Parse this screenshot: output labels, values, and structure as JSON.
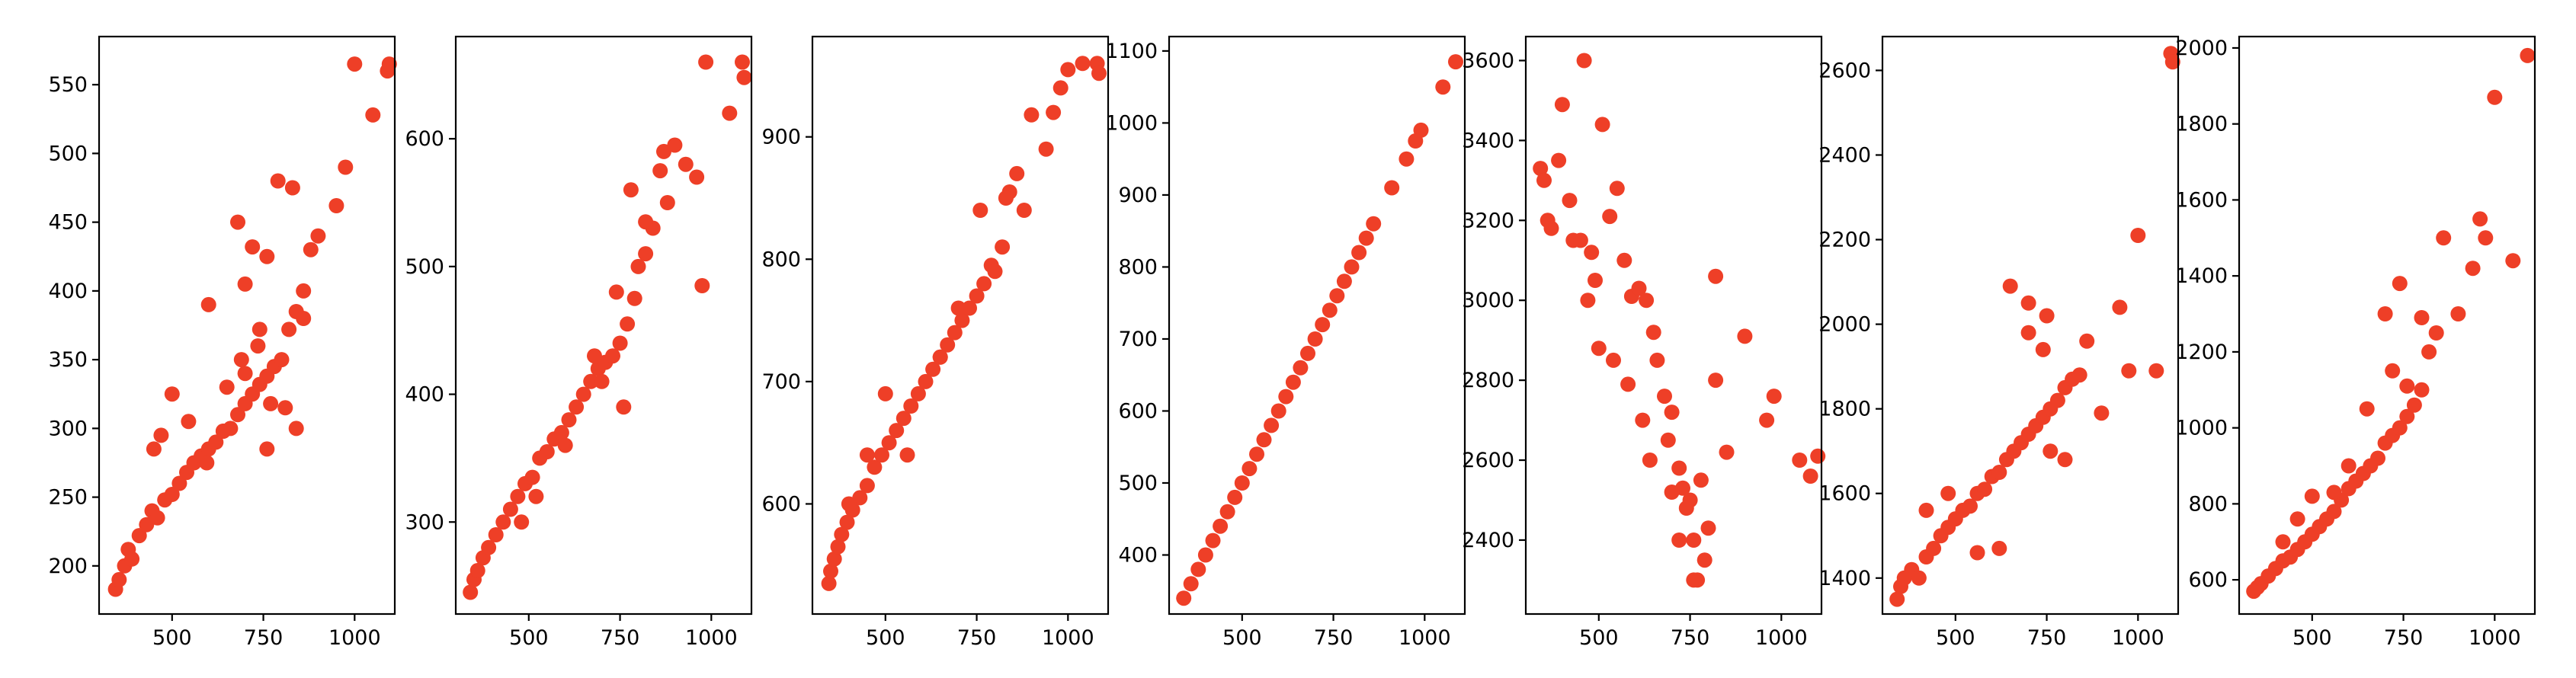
{
  "figure": {
    "point_color": "#ee3f27"
  },
  "chart_data": [
    {
      "type": "scatter",
      "title": "",
      "xlabel": "",
      "ylabel": "",
      "xlim": [
        300,
        1110
      ],
      "ylim": [
        165,
        585
      ],
      "grid": false,
      "legend": "none",
      "xticks": [
        {
          "v": 500,
          "label": "500"
        },
        {
          "v": 750,
          "label": "750"
        },
        {
          "v": 1000,
          "label": "1000"
        }
      ],
      "yticks": [
        {
          "v": 200,
          "label": "200"
        },
        {
          "v": 250,
          "label": "250"
        },
        {
          "v": 300,
          "label": "300"
        },
        {
          "v": 350,
          "label": "350"
        },
        {
          "v": 400,
          "label": "400"
        },
        {
          "v": 450,
          "label": "450"
        },
        {
          "v": 500,
          "label": "500"
        },
        {
          "v": 550,
          "label": "550"
        }
      ],
      "x": [
        345,
        355,
        370,
        380,
        390,
        410,
        430,
        445,
        460,
        480,
        500,
        520,
        540,
        560,
        580,
        600,
        620,
        640,
        660,
        680,
        700,
        720,
        740,
        760,
        780,
        800,
        820,
        840,
        860,
        880,
        900,
        950,
        975,
        1000,
        1050,
        1090,
        1095,
        680,
        720,
        760,
        790,
        830,
        700,
        740,
        600,
        650,
        690,
        735,
        770,
        810,
        840,
        860,
        450,
        470,
        500,
        545,
        595,
        640,
        700,
        760
      ],
      "y": [
        183,
        190,
        200,
        212,
        205,
        222,
        230,
        240,
        235,
        248,
        252,
        260,
        268,
        275,
        280,
        285,
        290,
        298,
        300,
        310,
        318,
        325,
        332,
        338,
        345,
        350,
        372,
        385,
        400,
        430,
        440,
        462,
        490,
        565,
        528,
        560,
        565,
        450,
        432,
        425,
        480,
        475,
        405,
        372,
        390,
        330,
        350,
        360,
        318,
        315,
        300,
        380,
        285,
        295,
        325,
        305,
        275,
        298,
        340,
        285
      ]
    },
    {
      "type": "scatter",
      "title": "",
      "xlabel": "",
      "ylabel": "",
      "xlim": [
        300,
        1110
      ],
      "ylim": [
        228,
        680
      ],
      "grid": false,
      "legend": "none",
      "xticks": [
        {
          "v": 500,
          "label": "500"
        },
        {
          "v": 750,
          "label": "750"
        },
        {
          "v": 1000,
          "label": "1000"
        }
      ],
      "yticks": [
        {
          "v": 300,
          "label": "300"
        },
        {
          "v": 400,
          "label": "400"
        },
        {
          "v": 500,
          "label": "500"
        },
        {
          "v": 600,
          "label": "600"
        }
      ],
      "x": [
        340,
        350,
        360,
        375,
        390,
        410,
        430,
        450,
        470,
        490,
        510,
        530,
        550,
        570,
        590,
        610,
        630,
        650,
        670,
        690,
        710,
        730,
        750,
        770,
        790,
        800,
        820,
        840,
        860,
        880,
        900,
        930,
        960,
        975,
        985,
        1050,
        1085,
        1090,
        820,
        870,
        780,
        740,
        760,
        700,
        680,
        600,
        520,
        480
      ],
      "y": [
        245,
        255,
        262,
        272,
        280,
        290,
        300,
        310,
        320,
        330,
        335,
        350,
        355,
        365,
        370,
        380,
        390,
        400,
        410,
        420,
        425,
        430,
        440,
        455,
        475,
        500,
        510,
        530,
        575,
        550,
        595,
        580,
        570,
        485,
        660,
        620,
        660,
        648,
        535,
        590,
        560,
        480,
        390,
        410,
        430,
        360,
        320,
        300
      ]
    },
    {
      "type": "scatter",
      "title": "",
      "xlabel": "",
      "ylabel": "",
      "xlim": [
        300,
        1110
      ],
      "ylim": [
        510,
        982
      ],
      "grid": false,
      "legend": "none",
      "xticks": [
        {
          "v": 500,
          "label": "500"
        },
        {
          "v": 750,
          "label": "750"
        },
        {
          "v": 1000,
          "label": "1000"
        }
      ],
      "yticks": [
        {
          "v": 600,
          "label": "600"
        },
        {
          "v": 700,
          "label": "700"
        },
        {
          "v": 800,
          "label": "800"
        },
        {
          "v": 900,
          "label": "900"
        }
      ],
      "x": [
        345,
        350,
        360,
        370,
        380,
        395,
        410,
        430,
        450,
        470,
        490,
        510,
        530,
        550,
        570,
        590,
        610,
        630,
        650,
        670,
        690,
        710,
        730,
        750,
        770,
        790,
        800,
        820,
        840,
        860,
        880,
        900,
        940,
        960,
        980,
        1000,
        1040,
        1080,
        1085,
        830,
        760,
        700,
        650,
        560,
        500,
        450,
        400
      ],
      "y": [
        535,
        545,
        555,
        565,
        575,
        585,
        595,
        605,
        615,
        630,
        640,
        650,
        660,
        670,
        680,
        690,
        700,
        710,
        720,
        730,
        740,
        750,
        760,
        770,
        780,
        795,
        790,
        810,
        855,
        870,
        840,
        918,
        890,
        920,
        940,
        955,
        960,
        960,
        952,
        850,
        840,
        760,
        720,
        640,
        690,
        640,
        600
      ]
    },
    {
      "type": "scatter",
      "title": "",
      "xlabel": "",
      "ylabel": "",
      "xlim": [
        300,
        1110
      ],
      "ylim": [
        318,
        1120
      ],
      "grid": false,
      "legend": "none",
      "xticks": [
        {
          "v": 500,
          "label": "500"
        },
        {
          "v": 750,
          "label": "750"
        },
        {
          "v": 1000,
          "label": "1000"
        }
      ],
      "yticks": [
        {
          "v": 400,
          "label": "400"
        },
        {
          "v": 500,
          "label": "500"
        },
        {
          "v": 600,
          "label": "600"
        },
        {
          "v": 700,
          "label": "700"
        },
        {
          "v": 800,
          "label": "800"
        },
        {
          "v": 900,
          "label": "900"
        },
        {
          "v": 1000,
          "label": "1000"
        },
        {
          "v": 1100,
          "label": "1100"
        }
      ],
      "x": [
        340,
        360,
        380,
        400,
        420,
        440,
        460,
        480,
        500,
        520,
        540,
        560,
        580,
        600,
        620,
        640,
        660,
        680,
        700,
        720,
        740,
        760,
        780,
        800,
        820,
        840,
        860,
        910,
        950,
        975,
        990,
        1050,
        1085
      ],
      "y": [
        340,
        360,
        380,
        400,
        420,
        440,
        460,
        480,
        500,
        520,
        540,
        560,
        580,
        600,
        620,
        640,
        660,
        680,
        700,
        720,
        740,
        760,
        780,
        800,
        820,
        840,
        860,
        910,
        950,
        975,
        990,
        1050,
        1085
      ]
    },
    {
      "type": "scatter",
      "title": "",
      "xlabel": "",
      "ylabel": "",
      "xlim": [
        300,
        1110
      ],
      "ylim": [
        2215,
        3660
      ],
      "grid": false,
      "legend": "none",
      "xticks": [
        {
          "v": 500,
          "label": "500"
        },
        {
          "v": 750,
          "label": "750"
        },
        {
          "v": 1000,
          "label": "1000"
        }
      ],
      "yticks": [
        {
          "v": 2400,
          "label": "2400"
        },
        {
          "v": 2600,
          "label": "2600"
        },
        {
          "v": 2800,
          "label": "2800"
        },
        {
          "v": 3000,
          "label": "3000"
        },
        {
          "v": 3200,
          "label": "3200"
        },
        {
          "v": 3400,
          "label": "3400"
        },
        {
          "v": 3600,
          "label": "3600"
        }
      ],
      "x": [
        340,
        350,
        360,
        370,
        390,
        400,
        420,
        430,
        450,
        460,
        480,
        490,
        510,
        530,
        550,
        570,
        590,
        610,
        630,
        650,
        660,
        680,
        690,
        700,
        720,
        730,
        740,
        750,
        760,
        770,
        780,
        800,
        820,
        850,
        900,
        960,
        980,
        1050,
        1080,
        1100,
        470,
        500,
        540,
        580,
        620,
        640,
        700,
        720,
        760,
        790,
        820
      ],
      "y": [
        3330,
        3300,
        3200,
        3180,
        3350,
        3490,
        3250,
        3150,
        3150,
        3600,
        3120,
        3050,
        3440,
        3210,
        3280,
        3100,
        3010,
        3030,
        3000,
        2920,
        2850,
        2760,
        2650,
        2720,
        2580,
        2530,
        2480,
        2500,
        2400,
        2300,
        2550,
        2430,
        2800,
        2620,
        2910,
        2700,
        2760,
        2600,
        2560,
        2610,
        3000,
        2880,
        2850,
        2790,
        2700,
        2600,
        2520,
        2400,
        2300,
        2350,
        3060
      ]
    },
    {
      "type": "scatter",
      "title": "",
      "xlabel": "",
      "ylabel": "",
      "xlim": [
        300,
        1110
      ],
      "ylim": [
        1315,
        2680
      ],
      "grid": false,
      "legend": "none",
      "xticks": [
        {
          "v": 500,
          "label": "500"
        },
        {
          "v": 750,
          "label": "750"
        },
        {
          "v": 1000,
          "label": "1000"
        }
      ],
      "yticks": [
        {
          "v": 1400,
          "label": "1400"
        },
        {
          "v": 1600,
          "label": "1600"
        },
        {
          "v": 1800,
          "label": "1800"
        },
        {
          "v": 2000,
          "label": "2000"
        },
        {
          "v": 2200,
          "label": "2200"
        },
        {
          "v": 2400,
          "label": "2400"
        },
        {
          "v": 2600,
          "label": "2600"
        }
      ],
      "x": [
        340,
        350,
        360,
        380,
        400,
        420,
        440,
        460,
        480,
        500,
        520,
        540,
        560,
        580,
        600,
        620,
        640,
        660,
        680,
        700,
        720,
        740,
        760,
        780,
        800,
        820,
        840,
        860,
        900,
        950,
        975,
        1000,
        1050,
        1090,
        1095,
        650,
        700,
        750,
        800,
        620,
        560,
        480,
        420,
        700,
        740,
        760
      ],
      "y": [
        1350,
        1380,
        1400,
        1420,
        1400,
        1450,
        1470,
        1500,
        1520,
        1540,
        1560,
        1570,
        1600,
        1610,
        1640,
        1650,
        1680,
        1700,
        1720,
        1740,
        1760,
        1780,
        1800,
        1820,
        1850,
        1870,
        1880,
        1960,
        1790,
        2040,
        1890,
        2210,
        1890,
        2640,
        2620,
        2090,
        2050,
        2020,
        1680,
        1470,
        1460,
        1600,
        1560,
        1980,
        1940,
        1700
      ]
    },
    {
      "type": "scatter",
      "title": "",
      "xlabel": "",
      "ylabel": "",
      "xlim": [
        300,
        1110
      ],
      "ylim": [
        510,
        2030
      ],
      "grid": false,
      "legend": "none",
      "xticks": [
        {
          "v": 500,
          "label": "500"
        },
        {
          "v": 750,
          "label": "750"
        },
        {
          "v": 1000,
          "label": "1000"
        }
      ],
      "yticks": [
        {
          "v": 600,
          "label": "600"
        },
        {
          "v": 800,
          "label": "800"
        },
        {
          "v": 1000,
          "label": "1000"
        },
        {
          "v": 1200,
          "label": "1200"
        },
        {
          "v": 1400,
          "label": "1400"
        },
        {
          "v": 1600,
          "label": "1600"
        },
        {
          "v": 1800,
          "label": "1800"
        },
        {
          "v": 2000,
          "label": "2000"
        }
      ],
      "x": [
        340,
        350,
        360,
        380,
        400,
        420,
        440,
        460,
        480,
        500,
        520,
        540,
        560,
        580,
        600,
        620,
        640,
        660,
        680,
        700,
        720,
        740,
        760,
        780,
        800,
        820,
        840,
        860,
        900,
        940,
        960,
        975,
        1000,
        1050,
        1090,
        700,
        740,
        800,
        650,
        600,
        560,
        500,
        460,
        420,
        720,
        760
      ],
      "y": [
        570,
        580,
        590,
        610,
        630,
        650,
        660,
        680,
        700,
        720,
        740,
        760,
        780,
        810,
        840,
        860,
        880,
        900,
        920,
        960,
        980,
        1000,
        1030,
        1060,
        1100,
        1200,
        1250,
        1500,
        1300,
        1420,
        1550,
        1500,
        1870,
        1440,
        1980,
        1300,
        1380,
        1290,
        1050,
        900,
        830,
        820,
        760,
        700,
        1150,
        1110
      ]
    }
  ]
}
